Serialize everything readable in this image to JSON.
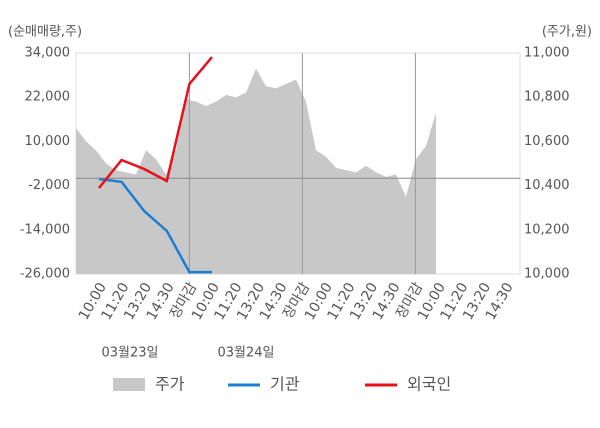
{
  "chart_data": {
    "type": "line",
    "y_label": "(순매매량,주)",
    "y2_label": "(주가,원)",
    "categories": [
      "10:00",
      "11:20",
      "13:20",
      "14:30",
      "장마감",
      "10:00",
      "11:20",
      "13:20",
      "14:30",
      "장마감",
      "10:00",
      "11:20",
      "13:20",
      "14:30",
      "장마감",
      "10:00",
      "11:20",
      "13:20",
      "14:30"
    ],
    "category_colors": [
      "#555",
      "#555",
      "#555",
      "#555",
      "#e8101a",
      "#555",
      "#555",
      "#555",
      "#555",
      "#e8101a",
      "#555",
      "#555",
      "#555",
      "#555",
      "#e8101a",
      "#111",
      "#555",
      "#555",
      "#555"
    ],
    "date_labels": [
      "03월23일",
      "03월24일"
    ],
    "price": {
      "name": "주가",
      "color": "#c8c8c8",
      "axis": "y2",
      "values": [
        10660,
        10600,
        10560,
        10500,
        10470,
        10460,
        10450,
        10560,
        10520,
        10450,
        10560,
        10790,
        10780,
        10760,
        10780,
        10810,
        10800,
        10820,
        10930,
        10850,
        10840,
        10860,
        10880,
        10780,
        10560,
        10530,
        10480,
        10470,
        10460,
        10490,
        10460,
        10440,
        10450,
        10350,
        10520,
        10580,
        10730
      ]
    },
    "series": [
      {
        "name": "기관",
        "color": "#1a7fd4",
        "values": [
          -200,
          -1000,
          -8900,
          -14300,
          -25500,
          -25500,
          null,
          null,
          null,
          null,
          null,
          null,
          null,
          null,
          null,
          null,
          null,
          null,
          null
        ]
      },
      {
        "name": "외국인",
        "color": "#e8101a",
        "values": [
          -2650,
          4950,
          2500,
          -750,
          25600,
          32900,
          null,
          null,
          null,
          null,
          null,
          null,
          null,
          null,
          null,
          null,
          null,
          null,
          null
        ]
      }
    ],
    "ylim": [
      -26000,
      34000
    ],
    "yticks": [
      {
        "value": 34000,
        "label": "34,000"
      },
      {
        "value": 22000,
        "label": "22,000"
      },
      {
        "value": 10000,
        "label": "10,000"
      },
      {
        "value": -2000,
        "label": "-2,000"
      },
      {
        "value": -14000,
        "label": "-14,000"
      },
      {
        "value": -26000,
        "label": "-26,000"
      }
    ],
    "y2lim": [
      10000,
      11000
    ],
    "y2ticks": [
      {
        "value": 11000,
        "label": "11,000"
      },
      {
        "value": 10800,
        "label": "10,800"
      },
      {
        "value": 10600,
        "label": "10,600"
      },
      {
        "value": 10400,
        "label": "10,400"
      },
      {
        "value": 10200,
        "label": "10,200"
      },
      {
        "value": 10000,
        "label": "10,000"
      }
    ]
  }
}
